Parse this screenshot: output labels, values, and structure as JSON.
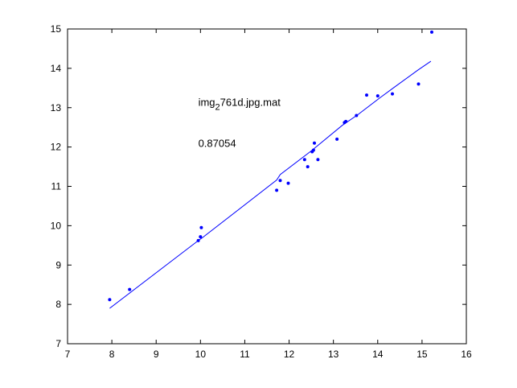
{
  "chart_data": {
    "type": "scatter",
    "title": "",
    "xlabel": "",
    "ylabel": "",
    "xlim": [
      7,
      16
    ],
    "ylim": [
      7,
      15
    ],
    "xticks": [
      7,
      8,
      9,
      10,
      11,
      12,
      13,
      14,
      15,
      16
    ],
    "yticks": [
      7,
      8,
      9,
      10,
      11,
      12,
      13,
      14,
      15
    ],
    "grid": false,
    "colors": {
      "series": "#0000ff",
      "axes": "#000000",
      "background": "#ffffff"
    },
    "annotations": [
      {
        "text_main": "img",
        "text_sub": "2",
        "text_rest": "761d.jpg.mat",
        "x": 9.95,
        "y": 13.05
      },
      {
        "text": "0.87054",
        "x": 9.95,
        "y": 12.0
      }
    ],
    "series": [
      {
        "type": "scatter",
        "x": [
          7.95,
          8.4,
          9.95,
          10.0,
          10.02,
          11.72,
          11.8,
          11.98,
          12.35,
          12.42,
          12.52,
          12.55,
          12.57,
          12.65,
          13.08,
          13.25,
          13.28,
          13.52,
          13.75,
          14.0,
          14.33,
          14.92,
          15.22
        ],
        "y": [
          8.12,
          8.38,
          9.62,
          9.72,
          9.95,
          10.9,
          11.15,
          11.08,
          11.68,
          11.5,
          11.88,
          11.92,
          12.1,
          11.68,
          12.2,
          12.62,
          12.65,
          12.8,
          13.32,
          13.3,
          13.35,
          13.6,
          14.92
        ]
      },
      {
        "type": "line",
        "x": [
          7.95,
          9.95,
          10.05,
          11.72,
          11.8,
          12.5,
          13.2,
          13.55,
          14.05,
          14.35,
          14.9,
          15.2
        ],
        "y": [
          7.9,
          9.62,
          9.7,
          11.16,
          11.3,
          11.9,
          12.55,
          12.82,
          13.25,
          13.5,
          13.95,
          14.18
        ]
      }
    ]
  }
}
